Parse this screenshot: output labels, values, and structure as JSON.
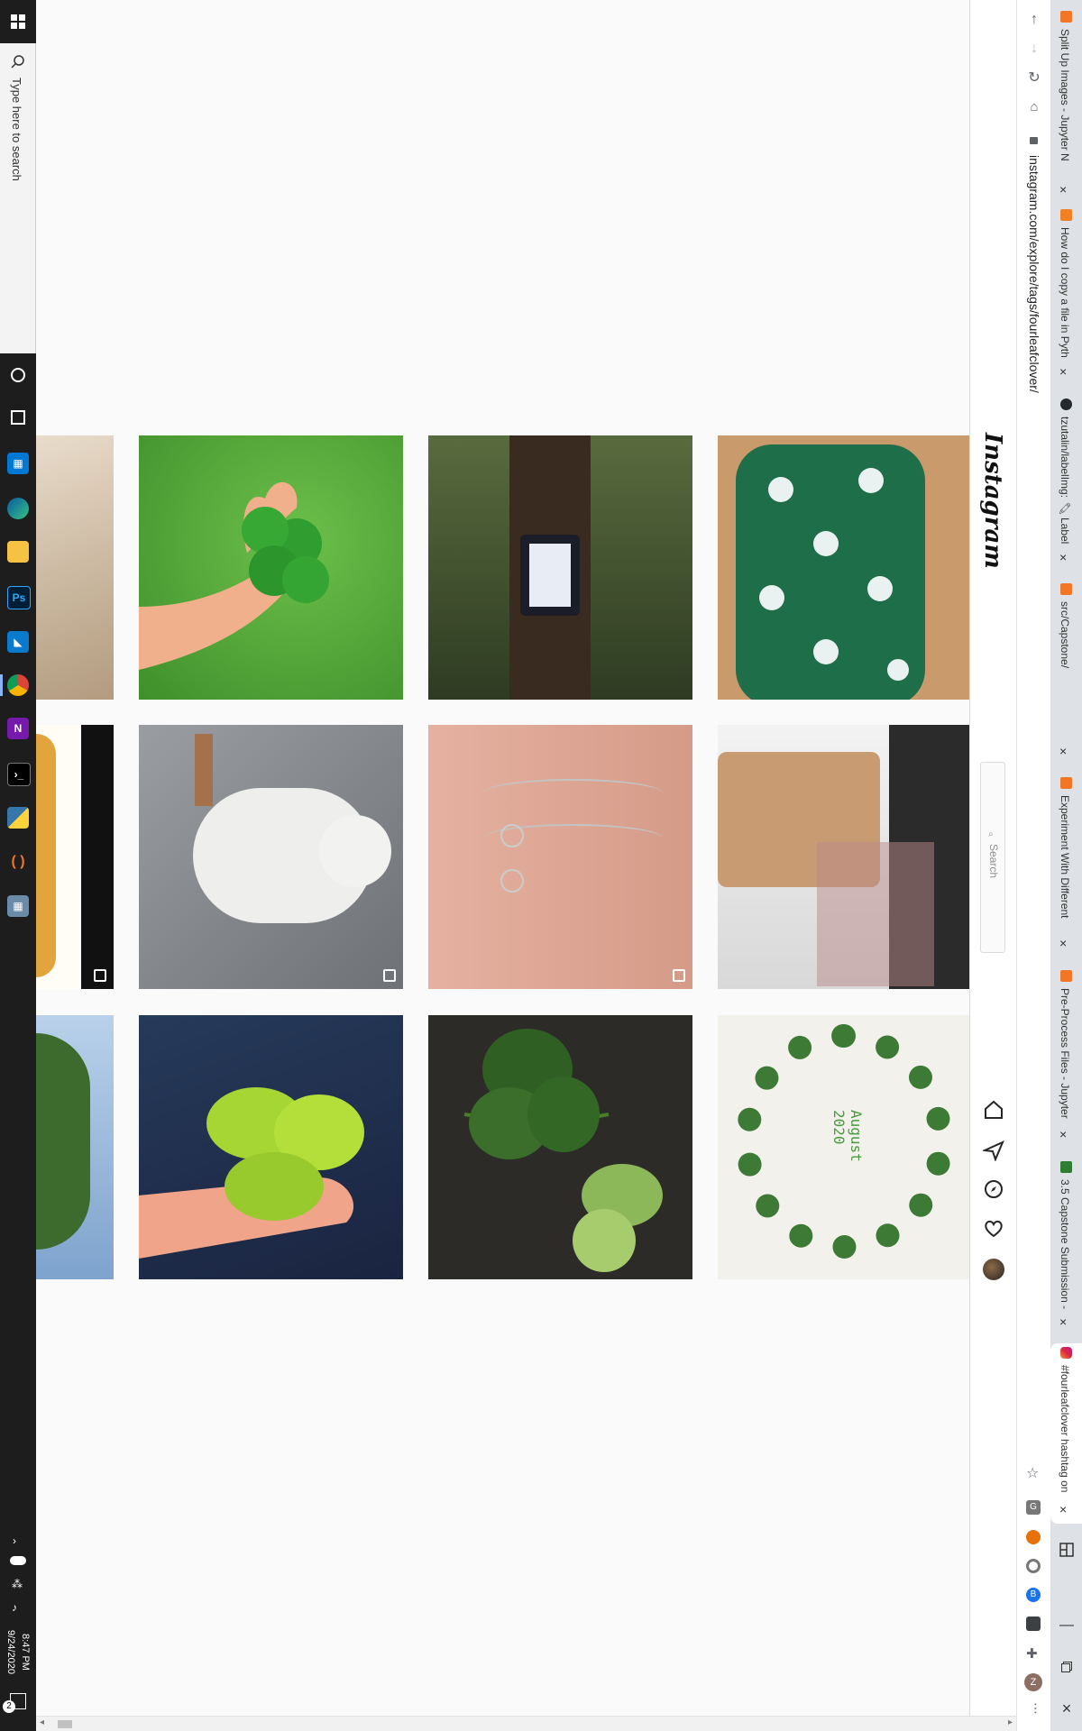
{
  "taskbar": {
    "search_placeholder": "Type here to search",
    "time": "8:47 PM",
    "date": "9/24/2020",
    "notification_count": "2",
    "apps": [
      "cortana-icon",
      "task-view-icon",
      "store-icon",
      "edge-icon",
      "file-explorer-icon",
      "photoshop-icon",
      "vscode-icon",
      "chrome-icon",
      "onenote-icon",
      "terminal-icon",
      "python-icon",
      "jupyter-icon",
      "calculator-icon"
    ]
  },
  "browser": {
    "url": "instagram.com/explore/tags/fourleafclover/",
    "tabs": [
      {
        "label": "Split Up Images - Jupyter N",
        "favicon_color": "#f37626",
        "active": false
      },
      {
        "label": "How do I copy a file in Pyth",
        "favicon_color": "#f48024",
        "active": false
      },
      {
        "label": "tzutalin/labelImg: 🖍 Label",
        "favicon_color": "#24292e",
        "active": false
      },
      {
        "label": "src/Capstone/",
        "favicon_color": "#f37626",
        "active": false
      },
      {
        "label": "Experiment With Different",
        "favicon_color": "#f37626",
        "active": false
      },
      {
        "label": "Pre-Process Files - Jupyter",
        "favicon_color": "#f37626",
        "active": false
      },
      {
        "label": "3.5 Capstone Submission -",
        "favicon_color": "#2e7d32",
        "active": false
      },
      {
        "label": "#fourleafclover hashtag on",
        "favicon_color": "#d6249f",
        "active": true
      }
    ],
    "extensions": [
      "G",
      "",
      "",
      "B",
      "",
      "",
      ""
    ],
    "profile_initial": "Z"
  },
  "instagram": {
    "logo": "Instagram",
    "search_placeholder": "Search",
    "nav": [
      "home-icon",
      "direct-icon",
      "explore-icon",
      "activity-icon",
      "profile-avatar"
    ]
  },
  "grid": {
    "image_caption": "August\n2020"
  }
}
